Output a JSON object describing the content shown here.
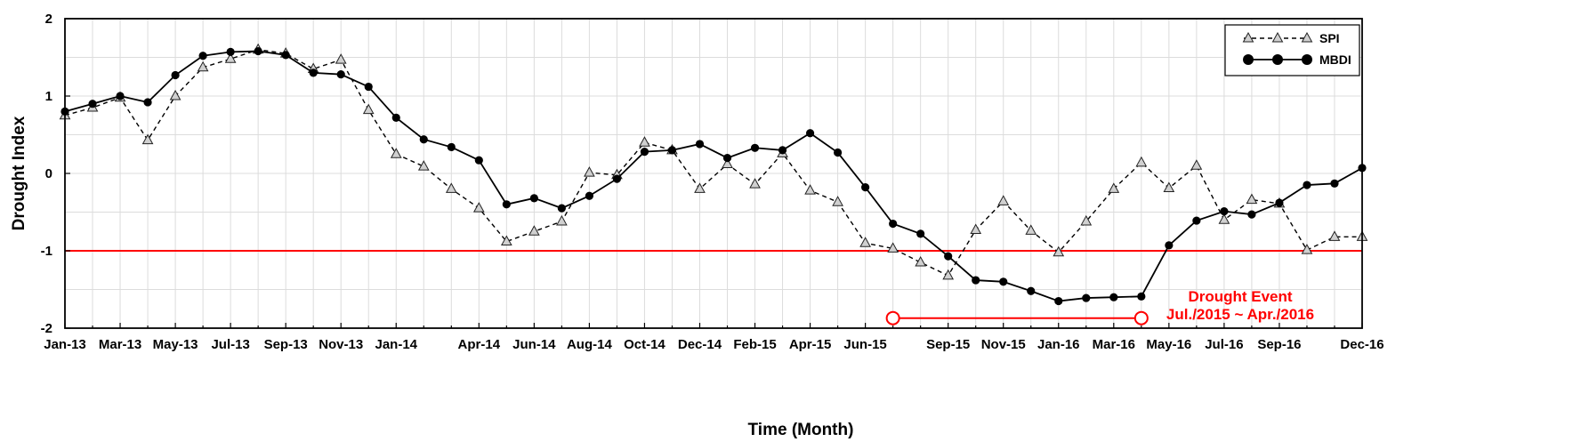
{
  "chart_data": {
    "type": "line",
    "title": "",
    "xlabel": "Time (Month)",
    "ylabel": "Drought Index",
    "ylim": [
      -2,
      2
    ],
    "yticks": [
      -2,
      -1,
      0,
      1,
      2
    ],
    "ytick_labels": [
      "-2",
      "-1",
      "0",
      "1",
      "2"
    ],
    "xtick_labels": [
      "Jan-13",
      "Mar-13",
      "May-13",
      "Jul-13",
      "Sep-13",
      "Nov-13",
      "Jan-14",
      "Apr-14",
      "Jun-14",
      "Aug-14",
      "Oct-14",
      "Dec-14",
      "Feb-15",
      "Apr-15",
      "Jun-15",
      "Sep-15",
      "Nov-15",
      "Jan-16",
      "Mar-16",
      "May-16",
      "Jul-16",
      "Sep-16",
      "Dec-16"
    ],
    "xtick_months": [
      0,
      2,
      4,
      6,
      8,
      10,
      12,
      15,
      17,
      19,
      21,
      23,
      25,
      27,
      29,
      32,
      34,
      36,
      38,
      40,
      42,
      44,
      47
    ],
    "x_months": [
      0,
      1,
      2,
      3,
      4,
      5,
      6,
      7,
      8,
      9,
      10,
      11,
      12,
      13,
      14,
      15,
      16,
      17,
      18,
      19,
      20,
      21,
      22,
      23,
      24,
      25,
      26,
      27,
      28,
      29,
      30,
      31,
      32,
      33,
      34,
      35,
      36,
      37,
      38,
      39,
      40,
      41,
      42,
      43,
      44,
      45,
      46,
      47
    ],
    "grid": true,
    "legend_position": "top-right",
    "series": [
      {
        "name": "SPI",
        "style": "dashed-triangle",
        "color": "#000000",
        "values": [
          0.75,
          0.85,
          0.98,
          0.43,
          1.0,
          1.37,
          1.48,
          1.6,
          1.55,
          1.35,
          1.47,
          0.82,
          0.25,
          0.09,
          -0.2,
          -0.45,
          -0.88,
          -0.75,
          -0.62,
          0.01,
          -0.02,
          0.4,
          0.3,
          -0.2,
          0.12,
          -0.14,
          0.26,
          -0.22,
          -0.37,
          -0.9,
          -0.97,
          -1.15,
          -1.32,
          -0.73,
          -0.36,
          -0.74,
          -1.02,
          -0.62,
          -0.2,
          0.14,
          -0.19,
          0.1,
          -0.6,
          -0.34,
          -0.39,
          -0.99,
          -0.82,
          -0.82
        ]
      },
      {
        "name": "MBDI",
        "style": "solid-circle",
        "color": "#000000",
        "values": [
          0.8,
          0.9,
          1.0,
          0.92,
          1.27,
          1.52,
          1.57,
          1.58,
          1.53,
          1.3,
          1.28,
          1.12,
          0.72,
          0.44,
          0.34,
          0.17,
          -0.4,
          -0.32,
          -0.45,
          -0.29,
          -0.07,
          0.28,
          0.3,
          0.38,
          0.2,
          0.33,
          0.3,
          0.52,
          0.27,
          -0.18,
          -0.65,
          -0.78,
          -1.07,
          -1.38,
          -1.4,
          -1.52,
          -1.65,
          -1.61,
          -1.6,
          -1.59,
          -0.93,
          -0.61,
          -0.49,
          -0.53,
          -0.38,
          -0.15,
          -0.13,
          0.07
        ]
      }
    ],
    "threshold": {
      "value": -1,
      "color": "#ff0000"
    },
    "annotation": {
      "title": "Drought Event",
      "range_text": "Jul./2015 ~ Apr./2016",
      "start_month": 30,
      "end_month": 39,
      "y": -1.87,
      "color": "#ff0000"
    }
  }
}
